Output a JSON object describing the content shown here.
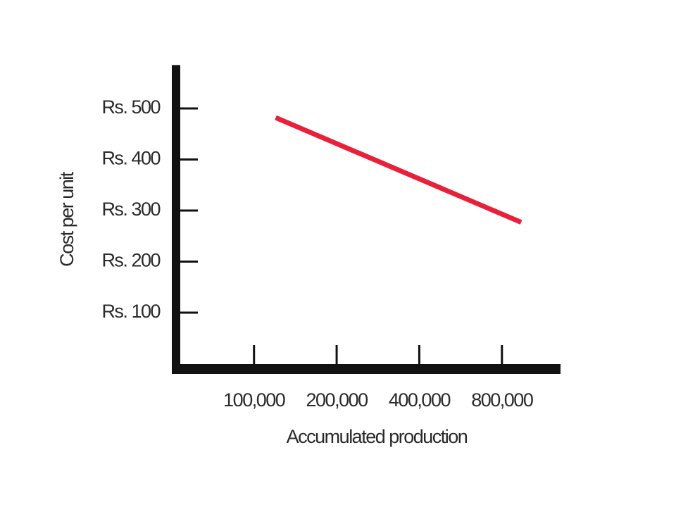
{
  "chart_data": {
    "type": "line",
    "xlabel": "Accumulated production",
    "ylabel": "Cost per unit",
    "x": [
      120000,
      940000
    ],
    "values": [
      482,
      277
    ],
    "color": "#e8203a",
    "xscale": "log",
    "xlim": [
      52000,
      1300000
    ],
    "xticks": [
      {
        "value": 100000,
        "label": "100,000"
      },
      {
        "value": 200000,
        "label": "200,000"
      },
      {
        "value": 400000,
        "label": "400,000"
      },
      {
        "value": 800000,
        "label": "800,000"
      }
    ],
    "ylim": [
      0,
      585
    ],
    "yticks": [
      {
        "value": 100,
        "label": "Rs. 100"
      },
      {
        "value": 200,
        "label": "Rs. 200"
      },
      {
        "value": 300,
        "label": "Rs. 300"
      },
      {
        "value": 400,
        "label": "Rs. 400"
      },
      {
        "value": 500,
        "label": "Rs. 500"
      }
    ],
    "grid": false
  }
}
